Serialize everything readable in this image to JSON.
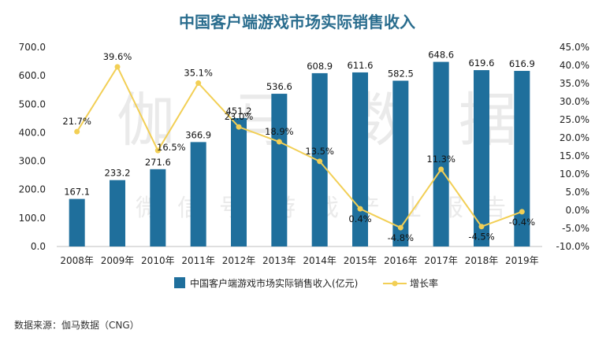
{
  "chart_data": {
    "type": "bar",
    "title": "中国客户端游戏市场实际销售收入",
    "categories": [
      "2008年",
      "2009年",
      "2010年",
      "2011年",
      "2012年",
      "2013年",
      "2014年",
      "2015年",
      "2016年",
      "2017年",
      "2018年",
      "2019年"
    ],
    "series": [
      {
        "name": "中国客户端游戏市场实际销售收入(亿元)",
        "type": "bar",
        "axis": "left",
        "color": "#1f6f9c",
        "values": [
          167.1,
          233.2,
          271.6,
          366.9,
          451.2,
          536.6,
          608.9,
          611.6,
          582.5,
          648.6,
          619.6,
          616.9
        ],
        "labels": [
          "167.1",
          "233.2",
          "271.6",
          "366.9",
          "451.2",
          "536.6",
          "608.9",
          "611.6",
          "582.5",
          "648.6",
          "619.6",
          "616.9"
        ]
      },
      {
        "name": "增长率",
        "type": "line",
        "axis": "right",
        "color": "#f2cf55",
        "values": [
          21.7,
          39.6,
          16.5,
          35.1,
          23.0,
          18.9,
          13.5,
          0.4,
          -4.8,
          11.3,
          -4.5,
          -0.4
        ],
        "labels": [
          "21.7%",
          "39.6%",
          "16.5%",
          "35.1%",
          "23.0%",
          "18.9%",
          "13.5%",
          "0.4%",
          "-4.8%",
          "11.3%",
          "-4.5%",
          "-0.4%"
        ]
      }
    ],
    "y_left": {
      "min": 0,
      "max": 700,
      "step": 100,
      "ticks": [
        "0.0",
        "100.0",
        "200.0",
        "300.0",
        "400.0",
        "500.0",
        "600.0",
        "700.0"
      ]
    },
    "y_right": {
      "min": -10,
      "max": 45,
      "step": 5,
      "ticks": [
        "-10.0%",
        "-5.0%",
        "0.0%",
        "5.0%",
        "10.0%",
        "15.0%",
        "20.0%",
        "25.0%",
        "30.0%",
        "35.0%",
        "40.0%",
        "45.0%"
      ]
    },
    "grid": false,
    "legend": "bottom",
    "watermark": [
      "伽",
      "马",
      "数",
      "据",
      "微",
      "信",
      "号",
      "游",
      "戏",
      "产",
      "业",
      "报",
      "告"
    ]
  },
  "source": "数据来源：伽马数据（CNG）"
}
